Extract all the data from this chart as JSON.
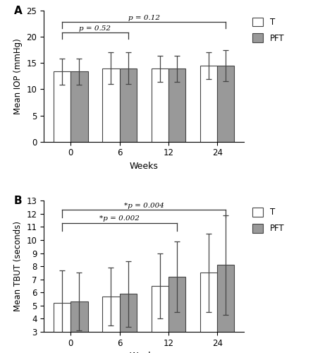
{
  "panel_A": {
    "label": "A",
    "weeks": [
      0,
      6,
      12,
      24
    ],
    "T_means": [
      13.4,
      14.0,
      13.9,
      14.5
    ],
    "T_errs": [
      2.5,
      3.0,
      2.5,
      2.5
    ],
    "PFT_means": [
      13.4,
      14.0,
      13.9,
      14.5
    ],
    "PFT_errs": [
      2.5,
      3.0,
      2.5,
      3.0
    ],
    "ylabel": "Mean IOP (mmHg)",
    "xlabel": "Weeks",
    "ylim": [
      0,
      25
    ],
    "yticks": [
      0,
      5,
      10,
      15,
      20,
      25
    ],
    "annot1": {
      "text": "p = 0.52",
      "xstart_idx": 0,
      "xend_idx": 1,
      "y": 20.8,
      "ydown": 1.2
    },
    "annot2": {
      "text": "p = 0.12",
      "xstart_idx": 0,
      "xend_idx": 3,
      "y": 22.8,
      "ydown": 1.2
    }
  },
  "panel_B": {
    "label": "B",
    "weeks": [
      0,
      6,
      12,
      24
    ],
    "T_means": [
      5.2,
      5.7,
      6.5,
      7.5
    ],
    "T_errs": [
      2.5,
      2.2,
      2.5,
      3.0
    ],
    "PFT_means": [
      5.3,
      5.9,
      7.2,
      8.1
    ],
    "PFT_errs": [
      2.2,
      2.5,
      2.7,
      3.8
    ],
    "ylabel": "Mean TBUT (seconds)",
    "xlabel": "Weeks",
    "ylim": [
      3,
      13
    ],
    "yticks": [
      3,
      4,
      5,
      6,
      7,
      8,
      9,
      10,
      11,
      12,
      13
    ],
    "annot1": {
      "text": "*p = 0.002",
      "xstart_idx": 0,
      "xend_idx": 2,
      "y": 11.3,
      "ydown": 0.6
    },
    "annot2": {
      "text": "*p = 0.004",
      "xstart_idx": 0,
      "xend_idx": 3,
      "y": 12.3,
      "ydown": 0.6
    }
  },
  "bar_width": 0.35,
  "T_color": "#ffffff",
  "PFT_color": "#999999",
  "edge_color": "#444444",
  "fig_width": 4.44,
  "fig_height": 5.0,
  "dpi": 100
}
